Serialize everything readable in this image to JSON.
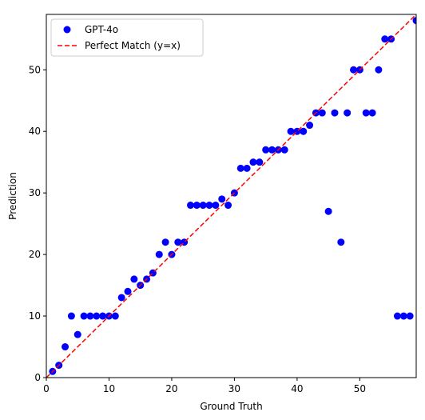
{
  "chart_data": {
    "type": "scatter",
    "xlabel": "Ground Truth",
    "ylabel": "Prediction",
    "xlim": [
      0,
      59
    ],
    "ylim": [
      0,
      59
    ],
    "xticks": [
      0,
      10,
      20,
      30,
      40,
      50
    ],
    "yticks": [
      0,
      10,
      20,
      30,
      40,
      50
    ],
    "grid": false,
    "legend_position": "top-left",
    "series": [
      {
        "name": "GPT-4o",
        "kind": "scatter",
        "color": "#0000ff",
        "points": [
          [
            1,
            1
          ],
          [
            2,
            2
          ],
          [
            3,
            5
          ],
          [
            4,
            10
          ],
          [
            5,
            7
          ],
          [
            6,
            10
          ],
          [
            7,
            10
          ],
          [
            8,
            10
          ],
          [
            9,
            10
          ],
          [
            10,
            10
          ],
          [
            11,
            10
          ],
          [
            12,
            13
          ],
          [
            13,
            14
          ],
          [
            14,
            16
          ],
          [
            15,
            15
          ],
          [
            16,
            16
          ],
          [
            17,
            17
          ],
          [
            18,
            20
          ],
          [
            19,
            22
          ],
          [
            20,
            20
          ],
          [
            21,
            22
          ],
          [
            22,
            22
          ],
          [
            23,
            28
          ],
          [
            24,
            28
          ],
          [
            25,
            28
          ],
          [
            26,
            28
          ],
          [
            27,
            28
          ],
          [
            28,
            29
          ],
          [
            29,
            28
          ],
          [
            30,
            30
          ],
          [
            31,
            34
          ],
          [
            32,
            34
          ],
          [
            33,
            35
          ],
          [
            34,
            35
          ],
          [
            35,
            37
          ],
          [
            36,
            37
          ],
          [
            37,
            37
          ],
          [
            38,
            37
          ],
          [
            39,
            40
          ],
          [
            40,
            40
          ],
          [
            41,
            40
          ],
          [
            42,
            41
          ],
          [
            43,
            43
          ],
          [
            44,
            43
          ],
          [
            45,
            27
          ],
          [
            46,
            43
          ],
          [
            47,
            22
          ],
          [
            48,
            43
          ],
          [
            49,
            50
          ],
          [
            50,
            50
          ],
          [
            51,
            43
          ],
          [
            52,
            43
          ],
          [
            53,
            50
          ],
          [
            54,
            55
          ],
          [
            55,
            55
          ],
          [
            56,
            10
          ],
          [
            57,
            10
          ],
          [
            58,
            10
          ],
          [
            59,
            58
          ]
        ]
      },
      {
        "name": "Perfect Match (y=x)",
        "kind": "line",
        "color": "#ff0000",
        "dash": "dashed",
        "points": [
          [
            0,
            0
          ],
          [
            59,
            59
          ]
        ]
      }
    ]
  }
}
